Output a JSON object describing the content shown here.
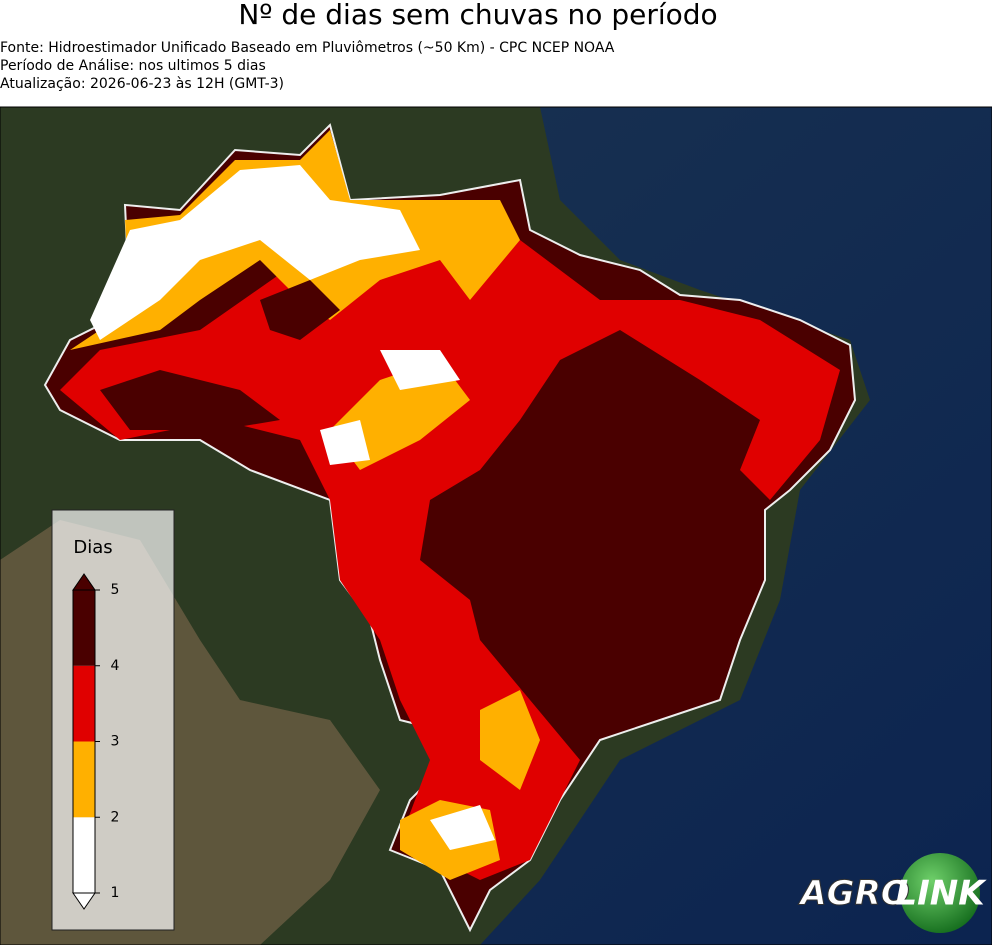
{
  "header": {
    "title": "Nº de dias sem chuvas no período",
    "source": "Fonte: Hidroestimador Unificado Baseado em Pluviômetros (~50 Km) - CPC NCEP NOAA",
    "period": "Período de Análise: nos ultimos 5 dias",
    "updated": "Atualização: 2026-06-23 às 12H (GMT-3)"
  },
  "legend": {
    "title": "Dias",
    "ticks": [
      1,
      2,
      3,
      4,
      5
    ],
    "colors": [
      "#ffffff",
      "#ffb000",
      "#e00000",
      "#4a0000"
    ]
  },
  "logo": {
    "left": "AGRO",
    "right": "LINK"
  }
}
